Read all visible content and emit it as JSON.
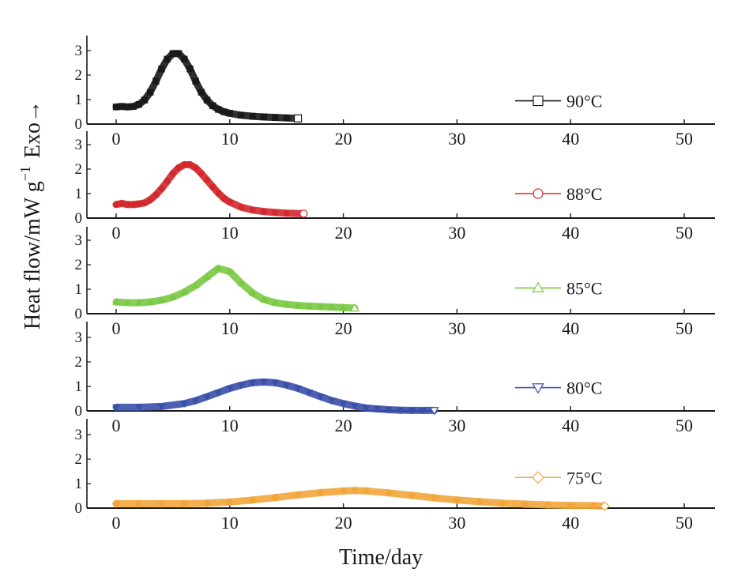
{
  "chart_data": {
    "type": "scatter",
    "xlabel": "Time/day",
    "ylabel": "Heat flow/mW g",
    "ylabel_sup": "−1",
    "ylabel_suffix": "Exo→",
    "xlim": [
      0,
      50
    ],
    "ylim": [
      0,
      3
    ],
    "xticks": [
      0,
      10,
      20,
      30,
      40,
      50
    ],
    "yticks": [
      0,
      1,
      2,
      3
    ],
    "grid": false,
    "panels": [
      {
        "name": "90°C",
        "color": "#1a1a1a",
        "marker": "square",
        "show_xtick_labels": true,
        "x": [
          0,
          0.5,
          1,
          1.5,
          2,
          2.5,
          3,
          3.5,
          4,
          4.5,
          5,
          5.5,
          6,
          6.5,
          7,
          7.5,
          8,
          8.5,
          9,
          9.5,
          10,
          11,
          12,
          13,
          14,
          15,
          16
        ],
        "y": [
          0.7,
          0.72,
          0.7,
          0.72,
          0.8,
          0.98,
          1.3,
          1.75,
          2.25,
          2.65,
          2.88,
          2.88,
          2.65,
          2.25,
          1.75,
          1.3,
          0.98,
          0.75,
          0.6,
          0.5,
          0.44,
          0.36,
          0.32,
          0.29,
          0.27,
          0.25,
          0.23
        ]
      },
      {
        "name": "88°C",
        "color": "#d4292c",
        "marker": "circle",
        "show_xtick_labels": true,
        "x": [
          0,
          0.5,
          1,
          1.5,
          2,
          2.5,
          3,
          3.5,
          4,
          4.5,
          5,
          5.5,
          6,
          6.5,
          7,
          7.5,
          8,
          8.5,
          9,
          9.5,
          10,
          11,
          12,
          13,
          14,
          15,
          16.5
        ],
        "y": [
          0.55,
          0.6,
          0.55,
          0.55,
          0.58,
          0.62,
          0.75,
          0.95,
          1.2,
          1.5,
          1.82,
          2.05,
          2.18,
          2.18,
          2.05,
          1.82,
          1.55,
          1.28,
          1.02,
          0.8,
          0.65,
          0.45,
          0.33,
          0.27,
          0.23,
          0.2,
          0.18
        ]
      },
      {
        "name": "85°C",
        "color": "#7ac943",
        "marker": "triangle-up",
        "show_xtick_labels": true,
        "x": [
          0,
          1,
          2,
          3,
          4,
          5,
          6,
          7,
          8,
          9,
          10,
          11,
          12,
          13,
          14,
          15,
          16,
          17,
          18,
          19,
          20,
          21
        ],
        "y": [
          0.48,
          0.45,
          0.45,
          0.48,
          0.55,
          0.68,
          0.88,
          1.15,
          1.5,
          1.85,
          1.72,
          1.25,
          0.85,
          0.58,
          0.45,
          0.38,
          0.34,
          0.31,
          0.29,
          0.27,
          0.25,
          0.23
        ]
      },
      {
        "name": "80°C",
        "color": "#3a4fa8",
        "marker": "triangle-down",
        "show_xtick_labels": true,
        "x": [
          0,
          2,
          4,
          6,
          7,
          8,
          9,
          10,
          11,
          12,
          13,
          14,
          15,
          16,
          17,
          18,
          19,
          20,
          21,
          22,
          23,
          24,
          25,
          26,
          27,
          28
        ],
        "y": [
          0.15,
          0.15,
          0.18,
          0.3,
          0.42,
          0.58,
          0.75,
          0.92,
          1.05,
          1.15,
          1.18,
          1.15,
          1.05,
          0.92,
          0.75,
          0.58,
          0.42,
          0.3,
          0.2,
          0.12,
          0.08,
          0.05,
          0.03,
          0.02,
          0.02,
          0.02
        ]
      },
      {
        "name": "75°C",
        "color": "#f2a63a",
        "marker": "diamond",
        "show_xtick_labels": true,
        "x": [
          0,
          2,
          4,
          6,
          8,
          10,
          12,
          14,
          16,
          18,
          20,
          21,
          22,
          24,
          26,
          28,
          30,
          32,
          34,
          36,
          38,
          40,
          42,
          43
        ],
        "y": [
          0.18,
          0.18,
          0.18,
          0.18,
          0.2,
          0.25,
          0.33,
          0.43,
          0.54,
          0.63,
          0.7,
          0.72,
          0.7,
          0.62,
          0.52,
          0.42,
          0.33,
          0.26,
          0.2,
          0.16,
          0.13,
          0.11,
          0.1,
          0.08
        ]
      }
    ]
  }
}
